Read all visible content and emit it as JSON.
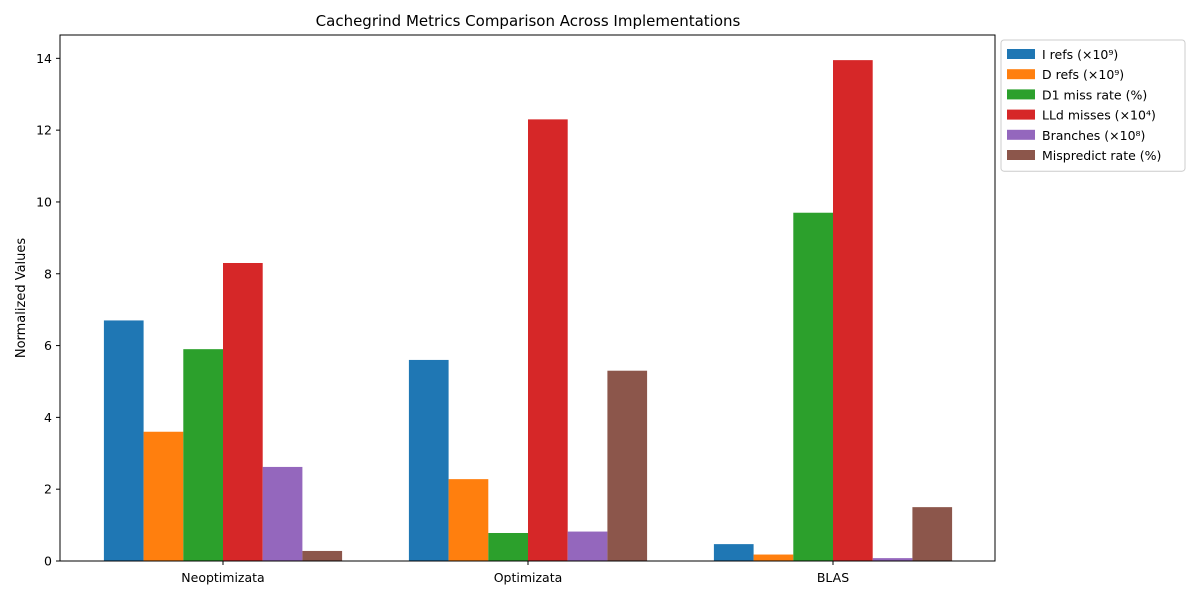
{
  "chart_data": {
    "type": "bar",
    "title": "Cachegrind Metrics Comparison Across Implementations",
    "xlabel": "",
    "ylabel": "Normalized Values",
    "categories": [
      "Neoptimizata",
      "Optimizata",
      "BLAS"
    ],
    "ylim": [
      0,
      14.65
    ],
    "yticks": [
      0,
      2,
      4,
      6,
      8,
      10,
      12,
      14
    ],
    "grid": false,
    "legend_position": "upper right, outside plot",
    "series": [
      {
        "name": "I refs (×10⁹)",
        "color": "#1f77b4",
        "values": [
          6.7,
          5.6,
          0.47
        ]
      },
      {
        "name": "D refs (×10⁹)",
        "color": "#ff7f0e",
        "values": [
          3.6,
          2.28,
          0.18
        ]
      },
      {
        "name": "D1 miss rate (%)",
        "color": "#2ca02c",
        "values": [
          5.9,
          0.78,
          9.7
        ]
      },
      {
        "name": "LLd misses (×10⁴)",
        "color": "#d62728",
        "values": [
          8.3,
          12.3,
          13.95
        ]
      },
      {
        "name": "Branches (×10⁸)",
        "color": "#9467bd",
        "values": [
          2.62,
          0.82,
          0.08
        ]
      },
      {
        "name": "Mispredict rate (%)",
        "color": "#8c564b",
        "values": [
          0.28,
          5.3,
          1.5
        ]
      }
    ]
  }
}
